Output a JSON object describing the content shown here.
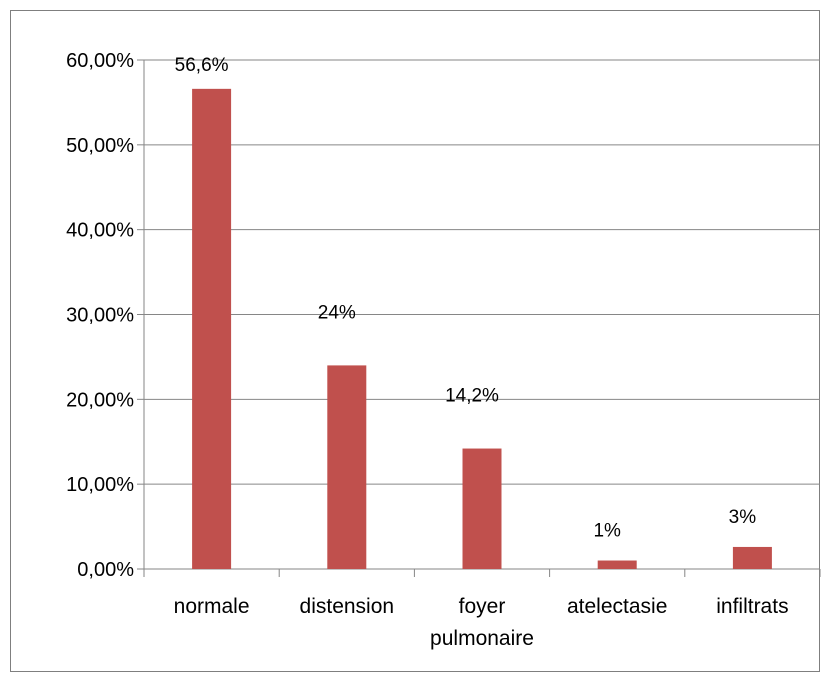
{
  "chart_data": {
    "type": "bar",
    "title": "",
    "xlabel": "",
    "ylabel": "",
    "categories": [
      [
        "normale"
      ],
      [
        "distension"
      ],
      [
        "foyer",
        "pulmonaire"
      ],
      [
        "atelectasie"
      ],
      [
        "infiltrats"
      ]
    ],
    "values": [
      56.6,
      24.0,
      14.2,
      1.0,
      2.6
    ],
    "data_labels": [
      "56,6%",
      "24%",
      "14,2%",
      "1%",
      "3%"
    ],
    "ylim": [
      0,
      60
    ],
    "yticks": [
      0,
      10,
      20,
      30,
      40,
      50,
      60
    ],
    "ytick_labels": [
      "0,00%",
      "10,00%",
      "20,00%",
      "30,00%",
      "40,00%",
      "50,00%",
      "60,00%"
    ],
    "grid": true,
    "legend": "none",
    "colors": {
      "bar": "#c0504d",
      "grid": "#868686",
      "axis": "#868686",
      "frame": "#7f7f7f"
    }
  }
}
